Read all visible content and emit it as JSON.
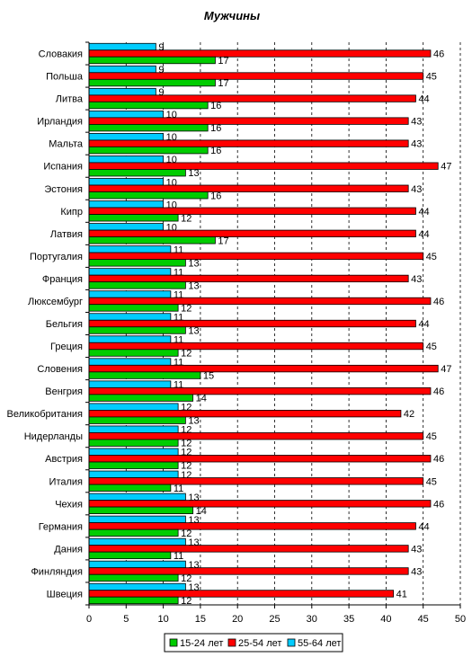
{
  "chart_data": {
    "type": "bar",
    "orientation": "horizontal",
    "title": "Мужчины",
    "categories": [
      "Словакия",
      "Польша",
      "Литва",
      "Ирландия",
      "Мальта",
      "Испания",
      "Эстония",
      "Кипр",
      "Латвия",
      "Португалия",
      "Франция",
      "Люксембург",
      "Бельгия",
      "Греция",
      "Словения",
      "Венгрия",
      "Великобритания",
      "Нидерланды",
      "Австрия",
      "Италия",
      "Чехия",
      "Германия",
      "Дания",
      "Финляндия",
      "Швеция"
    ],
    "series": [
      {
        "name": "55-64 лет",
        "color": "#00ccff",
        "values": [
          9,
          9,
          9,
          10,
          10,
          10,
          10,
          10,
          10,
          11,
          11,
          11,
          11,
          11,
          11,
          11,
          12,
          12,
          12,
          12,
          13,
          13,
          13,
          13,
          13
        ]
      },
      {
        "name": "25-54 лет",
        "color": "#ff0000",
        "values": [
          46,
          45,
          44,
          43,
          43,
          47,
          43,
          44,
          44,
          45,
          43,
          46,
          44,
          45,
          47,
          46,
          42,
          45,
          46,
          45,
          46,
          44,
          43,
          43,
          41
        ]
      },
      {
        "name": "15-24 лет",
        "color": "#00cc00",
        "values": [
          17,
          17,
          16,
          16,
          16,
          13,
          16,
          12,
          17,
          13,
          13,
          12,
          13,
          12,
          15,
          14,
          13,
          12,
          12,
          11,
          14,
          12,
          11,
          12,
          12
        ]
      }
    ],
    "xlim": [
      0,
      50
    ],
    "xticks": [
      0,
      5,
      10,
      15,
      20,
      25,
      30,
      35,
      40,
      45,
      50
    ],
    "gridlines": "vertical dashed",
    "legend_position": "bottom",
    "legend_order": [
      "15-24 лет",
      "25-54 лет",
      "55-64 лет"
    ]
  }
}
